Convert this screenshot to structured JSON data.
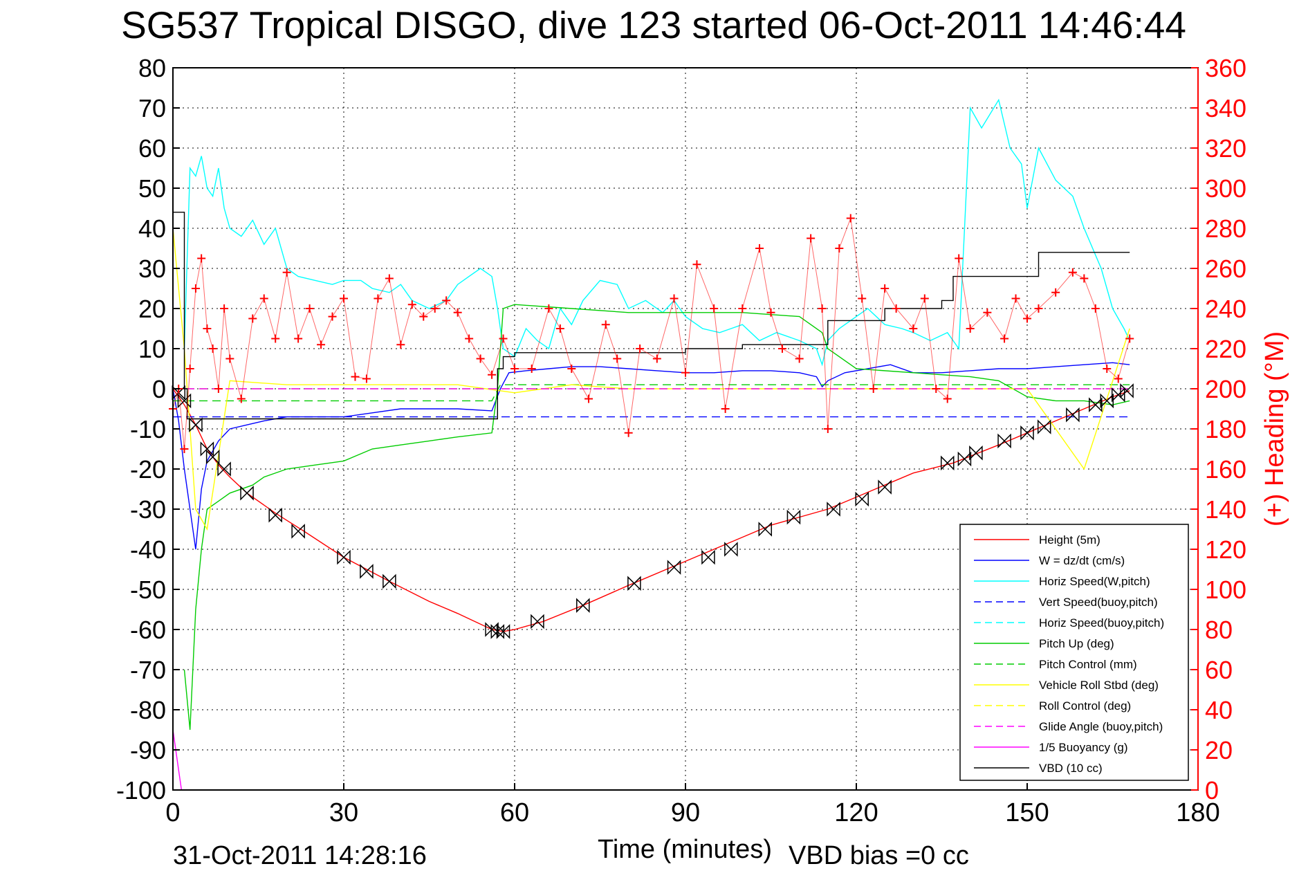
{
  "chart_data": {
    "type": "line",
    "title": "SG537 Tropical DISGO, dive 123 started 06-Oct-2011 14:46:44",
    "xlabel": "Time (minutes)",
    "ylabel": "",
    "ylabel_right": "(+) Heading (°M)",
    "xlim": [
      0,
      180
    ],
    "ylim": [
      -100,
      80
    ],
    "ylim_right": [
      0,
      360
    ],
    "xticks": [
      0,
      30,
      60,
      90,
      120,
      150,
      180
    ],
    "yticks": [
      -100,
      -90,
      -80,
      -70,
      -60,
      -50,
      -40,
      -30,
      -20,
      -10,
      0,
      10,
      20,
      30,
      40,
      50,
      60,
      70,
      80
    ],
    "yticks_right": [
      0,
      20,
      40,
      60,
      80,
      100,
      120,
      140,
      160,
      180,
      200,
      220,
      240,
      260,
      280,
      300,
      320,
      340,
      360
    ],
    "grid": true,
    "legend_position": "lower-right",
    "series": [
      {
        "name": "Height (5m)",
        "style": "solid",
        "color": "#ff0000",
        "axis": "left",
        "x": [
          0,
          2,
          4,
          6,
          8,
          10,
          13,
          18,
          23,
          30,
          34,
          38,
          45,
          50,
          56,
          58,
          60,
          65,
          72,
          80,
          90,
          100,
          105,
          115,
          120,
          125,
          130,
          137,
          145,
          150,
          155,
          160,
          165,
          168
        ],
        "y": [
          0,
          -4,
          -9,
          -15,
          -19,
          -22,
          -26,
          -31,
          -35.5,
          -42,
          -45,
          -48,
          -53,
          -56,
          -60,
          -60.5,
          -60,
          -58,
          -54,
          -49,
          -43,
          -37,
          -34,
          -30,
          -27,
          -24,
          -21,
          -18.5,
          -14,
          -11,
          -8,
          -5,
          -2,
          -0.5
        ]
      },
      {
        "name": "W  = dz/dt (cm/s)",
        "style": "solid",
        "color": "#0000ff",
        "axis": "left",
        "x": [
          0,
          1,
          2,
          3,
          4,
          5,
          6,
          8,
          10,
          13,
          16,
          20,
          25,
          30,
          35,
          40,
          45,
          50,
          56,
          57.5,
          59,
          62,
          66,
          70,
          75,
          80,
          85,
          90,
          95,
          100,
          105,
          110,
          113,
          114,
          115,
          118,
          122,
          126,
          130,
          135,
          140,
          145,
          150,
          155,
          160,
          165,
          168
        ],
        "y": [
          0,
          -8,
          -20,
          -30,
          -40,
          -25,
          -18,
          -13,
          -10,
          -9,
          -8,
          -7,
          -7,
          -7,
          -6,
          -5,
          -5,
          -5,
          -5.5,
          0,
          4,
          4.5,
          5,
          5.5,
          5.5,
          5,
          4.5,
          4,
          4,
          4.5,
          4.5,
          4,
          3,
          0.5,
          2,
          4,
          5,
          6,
          4,
          4,
          4.5,
          5,
          5,
          5.5,
          6,
          6.5,
          6
        ]
      },
      {
        "name": "Horiz Speed(W,pitch)",
        "style": "solid",
        "color": "#00ffff",
        "axis": "left",
        "x": [
          2,
          3,
          4,
          5,
          6,
          7,
          8,
          9,
          10,
          12,
          14,
          16,
          18,
          20,
          22,
          25,
          28,
          30,
          33,
          35,
          38,
          40,
          42,
          45,
          48,
          50,
          52,
          54,
          56,
          57,
          58,
          60,
          62,
          64,
          66,
          68,
          70,
          72,
          75,
          78,
          80,
          83,
          86,
          88,
          90,
          93,
          96,
          98,
          100,
          103,
          106,
          110,
          113,
          114,
          115,
          117,
          120,
          122,
          125,
          128,
          130,
          133,
          136,
          138,
          140,
          142,
          145,
          147,
          149,
          150,
          152,
          155,
          158,
          160,
          163,
          165,
          167,
          168
        ],
        "y": [
          10,
          55,
          53,
          58,
          50,
          48,
          55,
          45,
          40,
          38,
          42,
          36,
          40,
          30,
          28,
          27,
          26,
          27,
          27,
          25,
          24,
          26,
          22,
          20,
          22,
          26,
          28,
          30,
          28,
          20,
          10,
          8,
          15,
          12,
          10,
          20,
          16,
          22,
          27,
          26,
          20,
          22,
          19,
          22,
          18,
          15,
          14,
          15,
          16,
          12,
          14,
          12,
          10,
          6,
          12,
          15,
          18,
          20,
          16,
          15,
          14,
          12,
          14,
          10,
          70,
          65,
          72,
          60,
          56,
          45,
          60,
          52,
          48,
          40,
          30,
          20,
          15,
          12
        ]
      },
      {
        "name": "Vert Speed(buoy,pitch)",
        "style": "dashed",
        "color": "#0000ff",
        "axis": "left",
        "x": [
          0,
          168
        ],
        "y": [
          -7,
          -7
        ]
      },
      {
        "name": "Horiz Speed(buoy,pitch)",
        "style": "dashed",
        "color": "#00ffff",
        "axis": "left",
        "x": [
          0,
          168
        ],
        "y": [
          0,
          0
        ]
      },
      {
        "name": "Pitch Up (deg)",
        "style": "solid",
        "color": "#00cc00",
        "axis": "left",
        "x": [
          2,
          3,
          4,
          5,
          6,
          8,
          10,
          14,
          16,
          20,
          25,
          30,
          35,
          40,
          45,
          50,
          56,
          57,
          58,
          60,
          70,
          80,
          90,
          100,
          110,
          114,
          115,
          120,
          130,
          140,
          145,
          150,
          155,
          160,
          165,
          168
        ],
        "y": [
          -70,
          -85,
          -55,
          -40,
          -30,
          -28,
          -26,
          -24,
          -22,
          -20,
          -19,
          -18,
          -15,
          -14,
          -13,
          -12,
          -11,
          0,
          20,
          21,
          20,
          19,
          19,
          19,
          18,
          14,
          10,
          5,
          4,
          3,
          2,
          -2,
          -3,
          -3,
          -4,
          -3
        ]
      },
      {
        "name": "Pitch Control (mm)",
        "style": "dashed",
        "color": "#00cc00",
        "axis": "left",
        "x": [
          0,
          56,
          57.5,
          168
        ],
        "y": [
          -3,
          -3,
          1,
          1
        ]
      },
      {
        "name": "Vehicle Roll Stbd (deg)",
        "style": "solid",
        "color": "#ffff00",
        "axis": "left",
        "x": [
          0,
          2,
          4,
          6,
          10,
          20,
          30,
          40,
          50,
          60,
          70,
          80,
          90,
          100,
          110,
          120,
          130,
          140,
          150,
          160,
          168
        ],
        "y": [
          40,
          10,
          -30,
          -35,
          2,
          1,
          1,
          1,
          1,
          -1,
          1,
          0,
          0,
          0,
          0,
          0,
          0,
          0,
          0,
          -20,
          15
        ]
      },
      {
        "name": "Roll Control (deg)",
        "style": "dashed",
        "color": "#ffff00",
        "axis": "left",
        "x": [
          0,
          168
        ],
        "y": [
          0,
          0
        ]
      },
      {
        "name": "Glide Angle (buoy,pitch)",
        "style": "dashed",
        "color": "#ff00ff",
        "axis": "left",
        "x": [
          0,
          168
        ],
        "y": [
          0,
          0
        ]
      },
      {
        "name": "1/5 Buoyancy (g)",
        "style": "solid",
        "color": "#ff00ff",
        "axis": "left",
        "x": [
          0,
          0.5,
          1,
          1.5
        ],
        "y": [
          -85,
          -90,
          -95,
          -100
        ]
      },
      {
        "name": "VBD (10 cc)",
        "style": "solid",
        "color": "#000000",
        "axis": "left",
        "step": true,
        "x": [
          0,
          2,
          2.5,
          56,
          57,
          58,
          60,
          75,
          90,
          100,
          110,
          115,
          125,
          135,
          137,
          150,
          152,
          168
        ],
        "y": [
          44,
          0,
          -7.5,
          -7.5,
          5,
          8,
          9,
          9,
          10,
          11,
          11,
          17,
          20,
          22,
          28,
          28,
          34,
          34
        ]
      },
      {
        "name": "Heading",
        "style": "plus",
        "color": "#ff0000",
        "axis": "right",
        "x": [
          0,
          1,
          2,
          3,
          4,
          5,
          6,
          7,
          8,
          9,
          10,
          12,
          14,
          16,
          18,
          20,
          22,
          24,
          26,
          28,
          30,
          32,
          34,
          36,
          38,
          40,
          42,
          44,
          46,
          48,
          50,
          52,
          54,
          56,
          58,
          60,
          63,
          66,
          68,
          70,
          73,
          76,
          78,
          80,
          82,
          85,
          88,
          90,
          92,
          95,
          97,
          100,
          103,
          105,
          107,
          110,
          112,
          114,
          115,
          117,
          119,
          121,
          123,
          125,
          127,
          130,
          132,
          134,
          136,
          138,
          140,
          143,
          146,
          148,
          150,
          152,
          155,
          158,
          160,
          162,
          164,
          166,
          168
        ],
        "y": [
          190,
          200,
          170,
          210,
          250,
          265,
          230,
          220,
          200,
          240,
          215,
          195,
          235,
          245,
          225,
          258,
          225,
          240,
          222,
          236,
          245,
          206,
          205,
          245,
          255,
          222,
          242,
          236,
          240,
          244,
          238,
          225,
          215,
          207,
          225,
          210,
          210,
          240,
          230,
          210,
          195,
          232,
          215,
          178,
          220,
          215,
          245,
          208,
          262,
          240,
          190,
          240,
          270,
          238,
          220,
          215,
          275,
          240,
          180,
          270,
          285,
          245,
          200,
          250,
          240,
          230,
          245,
          200,
          195,
          265,
          230,
          238,
          225,
          245,
          235,
          240,
          248,
          258,
          255,
          240,
          210,
          205,
          225
        ]
      }
    ],
    "markers": {
      "name": "triangle markers on height track",
      "x": [
        1,
        2,
        4,
        6,
        7,
        9,
        13,
        18,
        22,
        30,
        34,
        38,
        56,
        57,
        58,
        64,
        72,
        81,
        88,
        94,
        98,
        104,
        109,
        116,
        121,
        125,
        136,
        139,
        141,
        146,
        150,
        153,
        158,
        162,
        164,
        166,
        167.5
      ],
      "y": [
        -1,
        -3,
        -9,
        -15,
        -17,
        -20,
        -26,
        -31.5,
        -35.5,
        -42,
        -45.5,
        -48,
        -60,
        -60.5,
        -60.5,
        -58,
        -54,
        -48.5,
        -44.5,
        -42,
        -40,
        -35,
        -32,
        -30,
        -27.5,
        -24.5,
        -18.5,
        -17.5,
        -16,
        -13,
        -11,
        -9.5,
        -6.5,
        -4,
        -3,
        -1.5,
        -0.5
      ]
    },
    "timestamp": "31-Oct-2011 14:28:16",
    "footer_note": "VBD bias =0 cc"
  }
}
